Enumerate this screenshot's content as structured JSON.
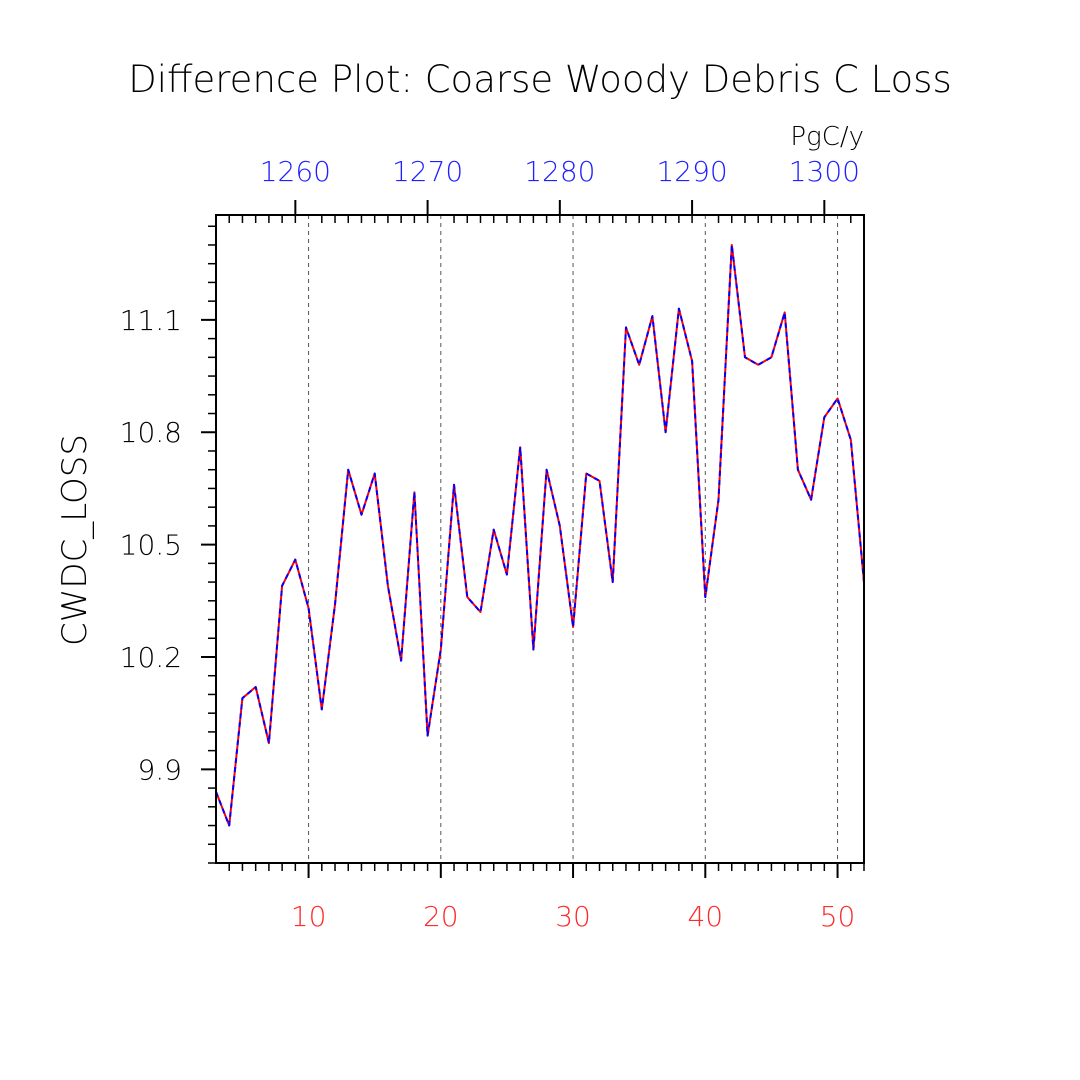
{
  "chart_data": {
    "type": "line",
    "title": "Difference Plot: Coarse Woody Debris C Loss",
    "units": "PgC/y",
    "ylabel": "CWDC_LOSS",
    "xlabel": "",
    "xlim": [
      3,
      52
    ],
    "ylim": [
      9.65,
      11.38
    ],
    "x_ticks": [
      10,
      20,
      30,
      40,
      50
    ],
    "y_ticks": [
      9.9,
      10.2,
      10.5,
      10.8,
      11.1
    ],
    "y_tick_labels": [
      "9.9",
      "10.2",
      "10.5",
      "10.8",
      "11.1"
    ],
    "top_axis": {
      "ticks": [
        1260,
        1270,
        1280,
        1290,
        1300
      ],
      "tick_labels": [
        "1260",
        "1270",
        "1280",
        "1290",
        "1300"
      ],
      "offset": 1251
    },
    "grid": "vertical dashed at major x ticks",
    "colors": {
      "bottom_axis_labels": "#ff2a2a",
      "top_axis_labels": "#1f1fff",
      "series_a": "#ff0000",
      "series_b": "#0000ff",
      "axis": "#000000"
    },
    "x": [
      3,
      4,
      5,
      6,
      7,
      8,
      9,
      10,
      11,
      12,
      13,
      14,
      15,
      16,
      17,
      18,
      19,
      20,
      21,
      22,
      23,
      24,
      25,
      26,
      27,
      28,
      29,
      30,
      31,
      32,
      33,
      34,
      35,
      36,
      37,
      38,
      39,
      40,
      41,
      42,
      43,
      44,
      45,
      46,
      47,
      48,
      49,
      50,
      51,
      52
    ],
    "series": [
      {
        "values": [
          9.84,
          9.75,
          10.09,
          10.12,
          9.97,
          10.39,
          10.46,
          10.33,
          10.06,
          10.34,
          10.7,
          10.58,
          10.69,
          10.39,
          10.19,
          10.64,
          9.99,
          10.22,
          10.66,
          10.36,
          10.32,
          10.54,
          10.42,
          10.76,
          10.22,
          10.7,
          10.55,
          10.28,
          10.69,
          10.67,
          10.4,
          11.08,
          10.98,
          11.11,
          10.8,
          11.13,
          10.99,
          10.36,
          10.62,
          11.3,
          11.0,
          10.98,
          11.0,
          11.12,
          10.7,
          10.62,
          10.84,
          10.89,
          10.78,
          10.4
        ]
      },
      {
        "values": [
          9.84,
          9.75,
          10.09,
          10.12,
          9.97,
          10.39,
          10.46,
          10.33,
          10.06,
          10.34,
          10.7,
          10.58,
          10.69,
          10.39,
          10.19,
          10.64,
          9.99,
          10.22,
          10.66,
          10.36,
          10.32,
          10.54,
          10.42,
          10.76,
          10.22,
          10.7,
          10.55,
          10.28,
          10.69,
          10.67,
          10.4,
          11.08,
          10.98,
          11.11,
          10.8,
          11.13,
          10.99,
          10.36,
          10.62,
          11.3,
          11.0,
          10.98,
          11.0,
          11.12,
          10.7,
          10.62,
          10.84,
          10.89,
          10.78,
          10.4
        ]
      }
    ]
  }
}
